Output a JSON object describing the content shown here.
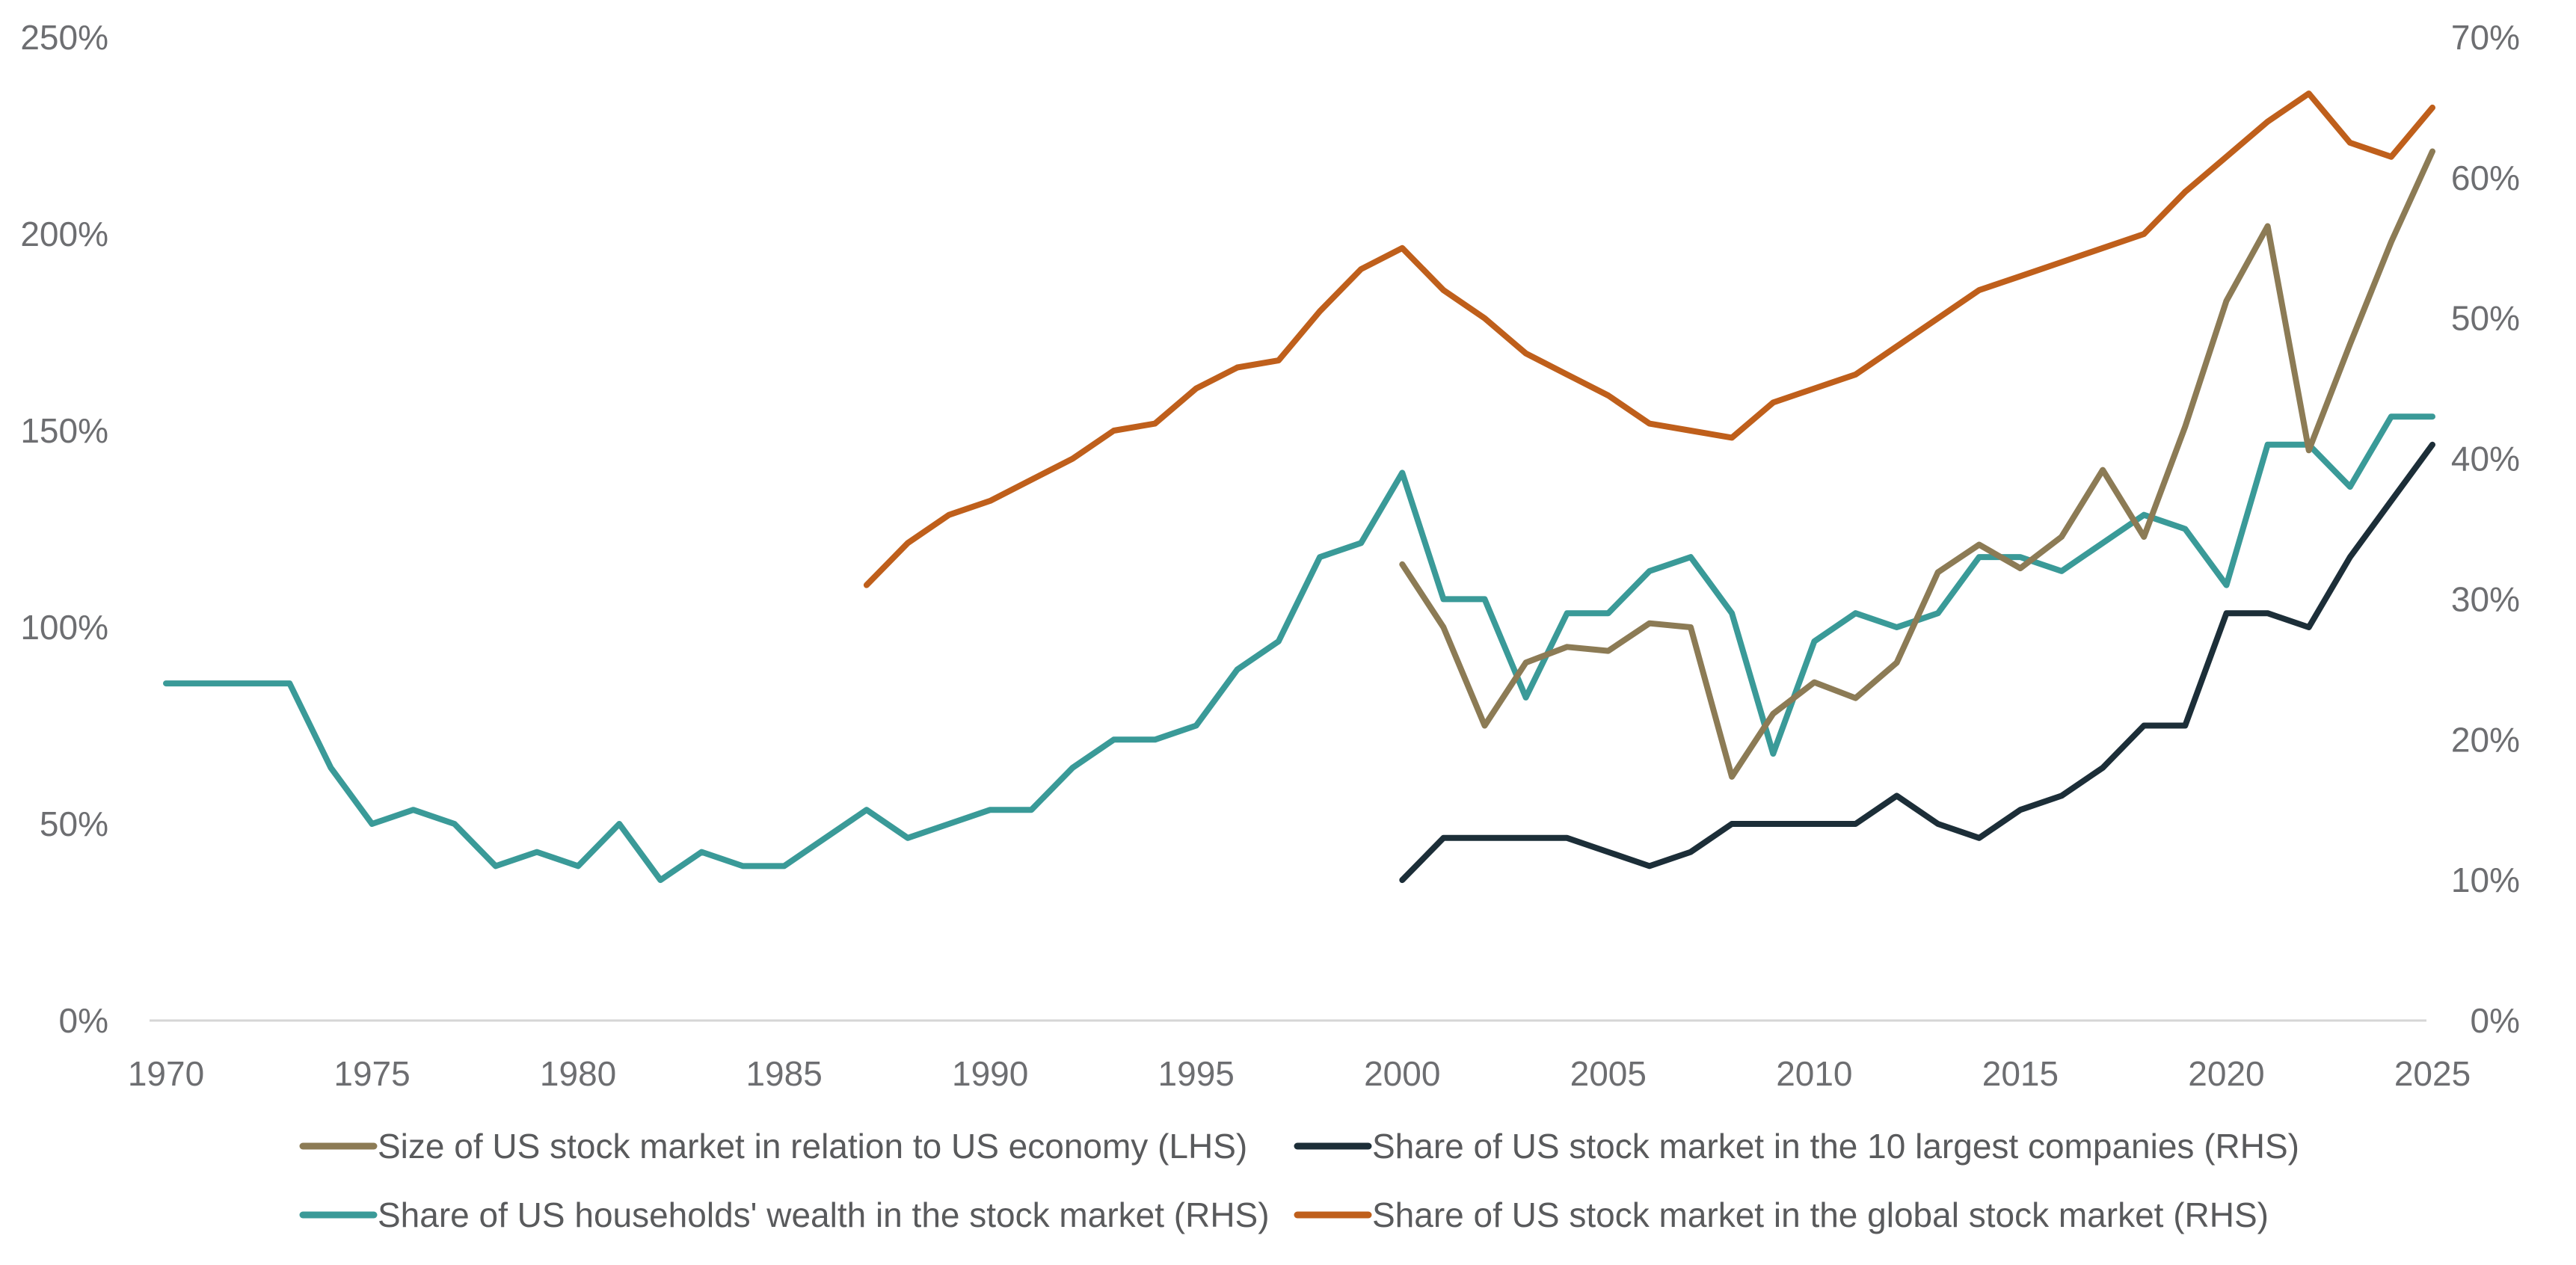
{
  "chart_data": {
    "type": "line",
    "title": "",
    "xlabel": "",
    "x_ticks": [
      "1970",
      "1975",
      "1980",
      "1985",
      "1990",
      "1995",
      "2000",
      "2005",
      "2010",
      "2015",
      "2020",
      "2025"
    ],
    "x_range": [
      1970,
      2025
    ],
    "y_left": {
      "range": [
        0,
        250
      ],
      "ticks": [
        "0%",
        "50%",
        "100%",
        "150%",
        "200%",
        "250%"
      ]
    },
    "y_right": {
      "range": [
        0,
        70
      ],
      "ticks": [
        "0%",
        "10%",
        "20%",
        "30%",
        "40%",
        "50%",
        "60%",
        "70%"
      ]
    },
    "grid": false,
    "legend_position": "bottom",
    "series": [
      {
        "name": "Size of US stock market in relation to US economy (LHS)",
        "axis": "left",
        "color": "#8c7b55",
        "x": [
          2000,
          2001,
          2002,
          2003,
          2004,
          2005,
          2006,
          2007,
          2008,
          2009,
          2010,
          2011,
          2012,
          2013,
          2014,
          2015,
          2016,
          2017,
          2018,
          2019,
          2020,
          2021,
          2022,
          2023,
          2024,
          2025
        ],
        "y": [
          116,
          100,
          75,
          91,
          95,
          94,
          101,
          100,
          62,
          78,
          86,
          82,
          91,
          114,
          121,
          115,
          123,
          140,
          123,
          151,
          183,
          202,
          145,
          172,
          198,
          221
        ]
      },
      {
        "name": "Share of US stock market in the 10 largest companies (RHS)",
        "axis": "right",
        "color": "#1c2e38",
        "x": [
          2000,
          2001,
          2002,
          2003,
          2004,
          2005,
          2006,
          2007,
          2008,
          2009,
          2010,
          2011,
          2012,
          2013,
          2014,
          2015,
          2016,
          2017,
          2018,
          2019,
          2020,
          2021,
          2022,
          2023,
          2024,
          2025
        ],
        "y": [
          10,
          13,
          13,
          13,
          13,
          12,
          11,
          12,
          14,
          14,
          14,
          14,
          16,
          14,
          13,
          15,
          16,
          18,
          21,
          21,
          29,
          29,
          28,
          33,
          37,
          41
        ]
      },
      {
        "name": "Share of US households' wealth in the stock market (RHS)",
        "axis": "right",
        "color": "#3a9a98",
        "x": [
          1970,
          1971,
          1972,
          1973,
          1974,
          1975,
          1976,
          1977,
          1978,
          1979,
          1980,
          1981,
          1982,
          1983,
          1984,
          1985,
          1986,
          1987,
          1988,
          1989,
          1990,
          1991,
          1992,
          1993,
          1994,
          1995,
          1996,
          1997,
          1998,
          1999,
          2000,
          2001,
          2002,
          2003,
          2004,
          2005,
          2006,
          2007,
          2008,
          2009,
          2010,
          2011,
          2012,
          2013,
          2014,
          2015,
          2016,
          2017,
          2018,
          2019,
          2020,
          2021,
          2022,
          2023,
          2024,
          2025
        ],
        "y": [
          24,
          24,
          24,
          24,
          18,
          14,
          15,
          14,
          11,
          12,
          11,
          14,
          10,
          12,
          11,
          11,
          13,
          15,
          13,
          14,
          15,
          15,
          18,
          20,
          20,
          21,
          25,
          27,
          33,
          34,
          39,
          30,
          30,
          23,
          29,
          29,
          32,
          33,
          29,
          19,
          27,
          29,
          28,
          29,
          33,
          33,
          32,
          34,
          36,
          35,
          31,
          41,
          41,
          38,
          43,
          43
        ]
      },
      {
        "name": "Share of US stock market in the global stock market (RHS)",
        "axis": "right",
        "color": "#bf5f1b",
        "x": [
          1987,
          1988,
          1989,
          1990,
          1991,
          1992,
          1993,
          1994,
          1995,
          1996,
          1997,
          1998,
          1999,
          2000,
          2001,
          2002,
          2003,
          2004,
          2005,
          2006,
          2007,
          2008,
          2009,
          2010,
          2011,
          2012,
          2013,
          2014,
          2015,
          2016,
          2017,
          2018,
          2019,
          2020,
          2021,
          2022,
          2023,
          2024,
          2025
        ],
        "y": [
          31,
          34,
          36,
          37,
          38.5,
          40,
          42,
          42.5,
          45,
          46.5,
          47,
          50.5,
          53.5,
          55,
          52,
          50,
          47.5,
          46,
          44.5,
          42.5,
          42,
          41.5,
          44,
          45,
          46,
          48,
          50,
          52,
          53,
          54,
          55,
          56,
          59,
          61.5,
          64,
          66,
          62.5,
          61.5,
          65
        ]
      }
    ]
  }
}
